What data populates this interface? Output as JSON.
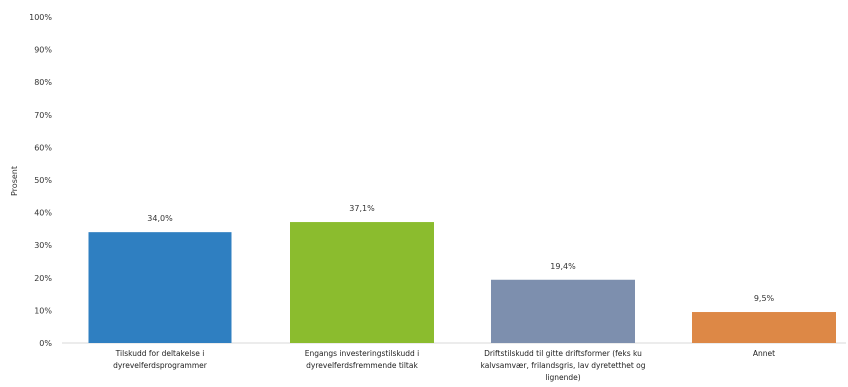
{
  "chart_data": {
    "type": "bar",
    "title": "",
    "xlabel": "",
    "ylabel": "Prosent",
    "ylim": [
      0,
      100
    ],
    "yticks": [
      "0%",
      "10%",
      "20%",
      "30%",
      "40%",
      "50%",
      "60%",
      "70%",
      "80%",
      "90%",
      "100%"
    ],
    "grid": false,
    "legend": "none",
    "categories": [
      [
        "Tilskudd for deltakelse i",
        "dyrevelferdsprogrammer"
      ],
      [
        "Engangs investeringstilskudd i",
        "dyrevelferdsfremmende tiltak"
      ],
      [
        "Driftstilskudd til gitte driftsformer (feks ku",
        "kalvsamvær, frilandsgris, lav dyretetthet og",
        "lignende)"
      ],
      [
        "Annet"
      ]
    ],
    "values": [
      34.0,
      37.1,
      19.4,
      9.5
    ],
    "data_labels": [
      "34,0%",
      "37,1%",
      "19,4%",
      "9,5%"
    ],
    "colors": [
      "#2f7fc1",
      "#8bbc2e",
      "#7d8fae",
      "#dd8846"
    ]
  }
}
